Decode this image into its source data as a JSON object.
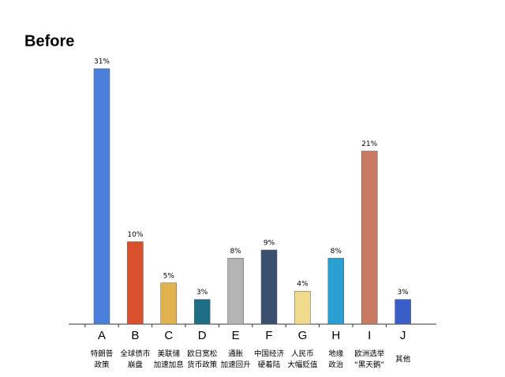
{
  "chart_data": {
    "type": "bar",
    "title": "Before",
    "categories": [
      "A",
      "B",
      "C",
      "D",
      "E",
      "F",
      "G",
      "H",
      "I",
      "J"
    ],
    "sublabels": [
      [
        "特朗普",
        "政策"
      ],
      [
        "全球债市",
        "崩盘"
      ],
      [
        "美联储",
        "加速加息"
      ],
      [
        "欧日宽松",
        "货币政策"
      ],
      [
        "通胀",
        "加速回升"
      ],
      [
        "中国经济",
        "硬着陆"
      ],
      [
        "人民币",
        "大幅贬值"
      ],
      [
        "地缘",
        "政治"
      ],
      [
        "欧洲选举",
        "“黑天鹅”"
      ],
      [
        "其他"
      ]
    ],
    "values": [
      31,
      10,
      5,
      3,
      8,
      9,
      4,
      8,
      21,
      3
    ],
    "value_labels": [
      "31%",
      "10%",
      "5%",
      "3%",
      "8%",
      "9%",
      "4%",
      "8%",
      "21%",
      "3%"
    ],
    "colors": [
      "#4a80dc",
      "#d8502c",
      "#e2b24e",
      "#1e6f86",
      "#b4b4b4",
      "#3b4f70",
      "#f0da8c",
      "#2aa0d2",
      "#c87a62",
      "#3a5ec8"
    ]
  }
}
